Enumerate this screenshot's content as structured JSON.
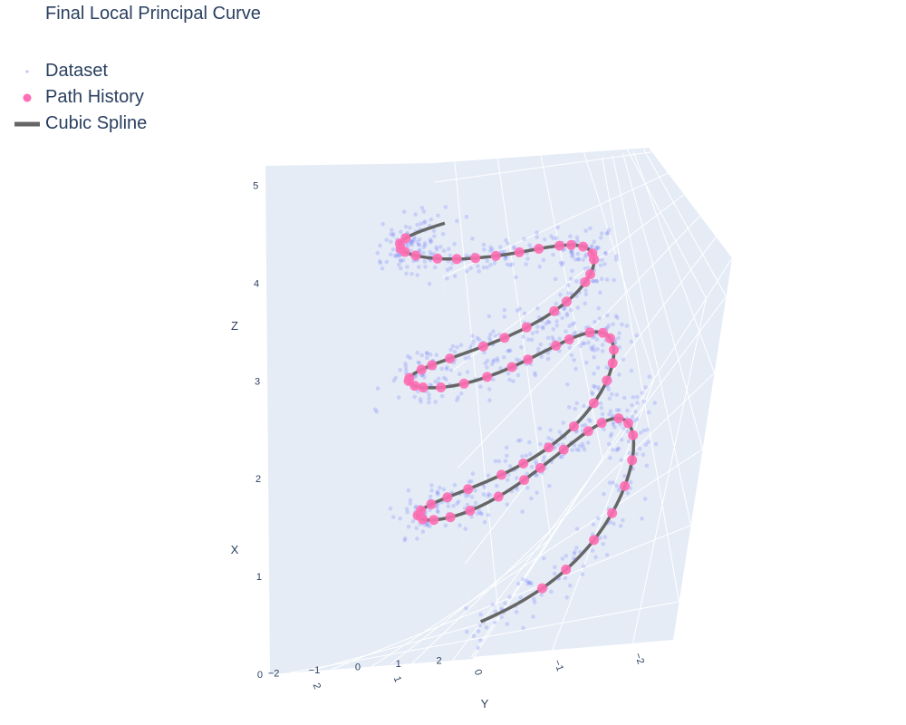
{
  "chart_data": {
    "type": "scatter",
    "title": "Final Local Principal Curve",
    "legend": {
      "placement": "top-left",
      "items": [
        {
          "name": "Dataset",
          "symbol": "small-point",
          "color": "#636efa"
        },
        {
          "name": "Path History",
          "symbol": "circle",
          "color": "#ff6eb4"
        },
        {
          "name": "Cubic Spline",
          "symbol": "line",
          "color": "#666666"
        }
      ]
    },
    "axes": {
      "x": {
        "label": "X",
        "ticks": [
          "−2",
          "−1",
          "0",
          "1",
          "2"
        ],
        "range": [
          -2.5,
          2.5
        ]
      },
      "y": {
        "label": "Y",
        "ticks": [
          "2",
          "1",
          "0",
          "−1",
          "−2"
        ],
        "range": [
          -2.5,
          2.5
        ]
      },
      "z": {
        "label": "Z",
        "ticks": [
          "0",
          "1",
          "2",
          "3",
          "4",
          "5"
        ],
        "range": [
          0,
          5.2
        ]
      }
    },
    "grid": true,
    "helix": {
      "radius": 1.5,
      "turns": 3,
      "z_range": [
        0,
        4.5
      ]
    },
    "series": [
      {
        "name": "Dataset",
        "type": "scatter3d",
        "color": "#636efa",
        "count": 900,
        "noise": 0.35
      },
      {
        "name": "Path History",
        "type": "scatter3d",
        "color": "#ff6eb4",
        "count": 72
      },
      {
        "name": "Cubic Spline",
        "type": "line3d",
        "color": "#666666"
      }
    ]
  },
  "colors": {
    "scene_bg": "#e5ecf6",
    "grid": "#ffffff",
    "text": "#2a3f5f",
    "dataset": "#636efa",
    "path": "#ff6eb4",
    "spline": "#666666"
  }
}
